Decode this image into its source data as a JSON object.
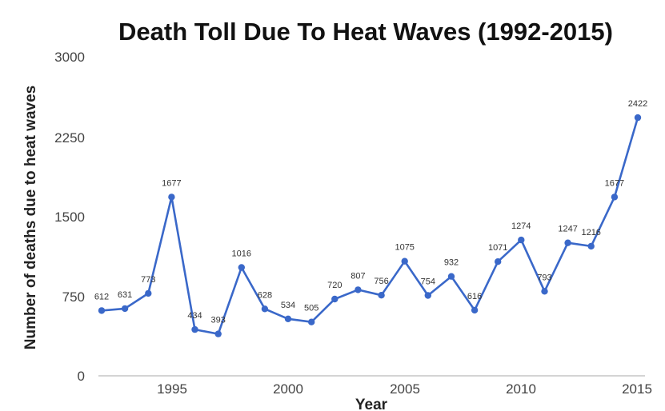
{
  "chart_data": {
    "type": "line",
    "title": "Death Toll Due To Heat Waves (1992-2015)",
    "xlabel": "Year",
    "ylabel": "Number of deaths due to heat waves",
    "x": [
      1992,
      1993,
      1994,
      1995,
      1996,
      1997,
      1998,
      1999,
      2000,
      2001,
      2002,
      2003,
      2004,
      2005,
      2006,
      2007,
      2008,
      2009,
      2010,
      2011,
      2012,
      2013,
      2014,
      2015
    ],
    "series": [
      {
        "values": [
          612,
          631,
          773,
          1677,
          434,
          393,
          1016,
          628,
          534,
          505,
          720,
          807,
          756,
          1075,
          754,
          932,
          616,
          1071,
          1274,
          793,
          1247,
          1216,
          1677,
          2422
        ],
        "color": "#3a68c9"
      }
    ],
    "ylim": [
      0,
      3000
    ],
    "yticks": [
      "0",
      "750",
      "1500",
      "2250",
      "3000"
    ],
    "xticks": [
      "1995",
      "2000",
      "2005",
      "2010",
      "2015"
    ],
    "grid": "horizontal baseline only",
    "legend": "none",
    "colors": {
      "line": "#3a68c9",
      "axis": "#bbbbbb"
    }
  }
}
